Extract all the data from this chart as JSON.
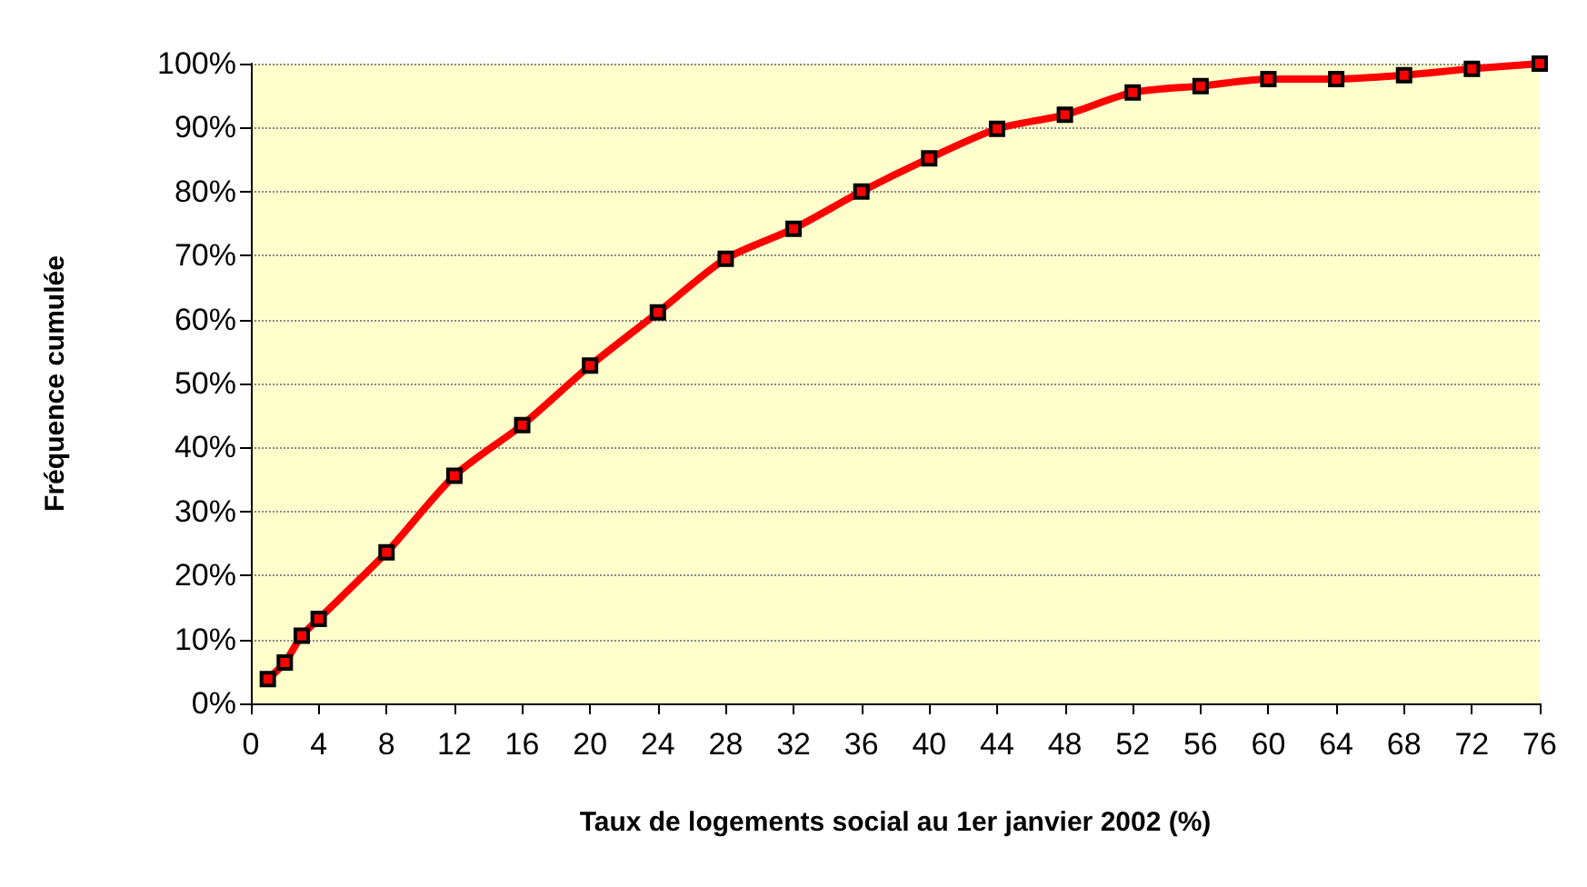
{
  "chart_data": {
    "type": "line",
    "xlabel": "Taux de logements social au 1er janvier 2002 (%)",
    "ylabel": "Fréquence cumulée",
    "x": [
      1,
      2,
      3,
      4,
      8,
      12,
      16,
      20,
      24,
      28,
      32,
      36,
      40,
      44,
      48,
      52,
      56,
      60,
      64,
      68,
      72,
      76
    ],
    "series": [
      {
        "color": "#ff0000",
        "values": [
          3.8,
          6.4,
          10.6,
          13.2,
          23.6,
          35.6,
          43.5,
          52.8,
          61.1,
          69.5,
          74.2,
          80.0,
          85.2,
          89.8,
          92.0,
          95.5,
          96.5,
          97.6,
          97.6,
          98.2,
          99.2,
          100
        ]
      }
    ],
    "xlim": [
      0,
      76
    ],
    "xticks": [
      0,
      4,
      8,
      12,
      16,
      20,
      24,
      28,
      32,
      36,
      40,
      44,
      48,
      52,
      56,
      60,
      64,
      68,
      72,
      76
    ],
    "ylim": [
      0,
      100
    ],
    "yticks": [
      {
        "value": 0,
        "label": "0%"
      },
      {
        "value": 10,
        "label": "10%"
      },
      {
        "value": 20,
        "label": "20%"
      },
      {
        "value": 30,
        "label": "30%"
      },
      {
        "value": 40,
        "label": "40%"
      },
      {
        "value": 50,
        "label": "50%"
      },
      {
        "value": 60,
        "label": "60%"
      },
      {
        "value": 70,
        "label": "70%"
      },
      {
        "value": 80,
        "label": "80%"
      },
      {
        "value": 90,
        "label": "90%"
      },
      {
        "value": 100,
        "label": "100%"
      }
    ],
    "grid": "y",
    "marker": "square",
    "line_style": "solid"
  }
}
